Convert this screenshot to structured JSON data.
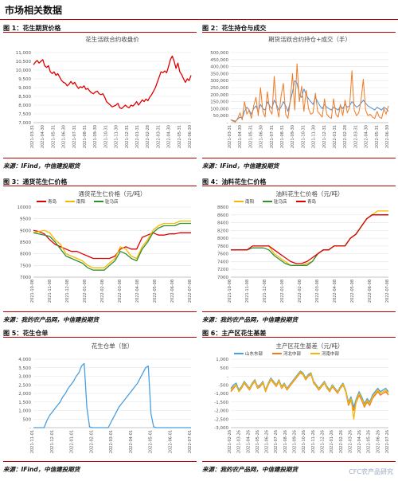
{
  "page": {
    "title": "市场相关数据"
  },
  "panels": [
    {
      "label": "图 1：花生期货价格",
      "source": "来源：IFind，中信建投期货"
    },
    {
      "label": "图 2：花生持仓与成交",
      "source": "来源：IFind，中信建投期货"
    },
    {
      "label": "图 3：通货花生仁价格",
      "source": "来源：我的农产品网，中信建投期货"
    },
    {
      "label": "图 4：油料花生仁价格",
      "source": "来源：我的农产品网，中信建投期货"
    },
    {
      "label": "图 5：花生仓单",
      "source": "来源：IFind，中信建投期货"
    },
    {
      "label": "图 6：主产区花生基差",
      "source": "来源：我的农产品网，中信建投期货"
    }
  ],
  "watermark": "CFC农产品研究",
  "colors": {
    "accent_rule": "#c00000",
    "red": "#e00000",
    "orange": "#f07a22",
    "blue": "#4f8fd6",
    "gold": "#f5b800",
    "green": "#2f8f2f",
    "lightblue": "#4a9fe0"
  },
  "chart_data": [
    {
      "type": "line",
      "title": "花生活跃合约收盘价",
      "ylim": [
        7000,
        11000
      ],
      "yticks": [
        7000,
        7500,
        8000,
        8500,
        9000,
        9500,
        10000,
        10500,
        11000
      ],
      "ytick_labels": [
        "7,000",
        "7,500",
        "8,000",
        "8,500",
        "9,000",
        "9,500",
        "10,000",
        "10,500",
        "11,000"
      ],
      "x_labels": [
        "2021-03-31",
        "2021-04-30",
        "2021-05-31",
        "2021-06-30",
        "2021-07-31",
        "2021-08-31",
        "2021-09-30",
        "2021-10-31",
        "2021-11-30",
        "2021-12-31",
        "2022-01-31",
        "2022-02-28",
        "2022-03-31",
        "2022-04-30",
        "2022-05-31",
        "2022-06-30"
      ],
      "series": [
        {
          "values": [
            10300,
            10450,
            10550,
            10400,
            10500,
            10600,
            10250,
            10150,
            10250,
            9900,
            9800,
            9900,
            9700,
            9800,
            9600,
            9400,
            9300,
            9250,
            9100,
            9200,
            9350,
            9200,
            9300,
            9100,
            8950,
            9050,
            9000,
            9100,
            8900,
            8950,
            8800,
            8700,
            8650,
            8750,
            8800,
            8650,
            8600,
            8650,
            8450,
            8200,
            8100,
            8000,
            7900,
            7950,
            8000,
            8100,
            7850,
            7800,
            7900,
            8000,
            7900,
            7850,
            8000,
            7950,
            8050,
            8200,
            8000,
            8150,
            8300,
            8200,
            8350,
            8250,
            8450,
            8600,
            8800,
            9000,
            9300,
            9600,
            9900,
            9850,
            9950,
            9850,
            10200,
            10600,
            10800,
            10500,
            10100,
            10400,
            9900,
            9750,
            9500,
            9300,
            9500,
            9400,
            9700
          ]
        }
      ]
    },
    {
      "type": "line",
      "title": "期货活跃合约持仓+成交（手）",
      "ylim": [
        0,
        500000
      ],
      "yticks": [
        0,
        50000,
        100000,
        150000,
        200000,
        250000,
        300000,
        350000,
        400000,
        450000,
        500000
      ],
      "ytick_labels": [
        "-",
        "50,000",
        "100,000",
        "150,000",
        "200,000",
        "250,000",
        "300,000",
        "350,000",
        "400,000",
        "450,000",
        "500,000"
      ],
      "x_labels": [
        "2021-03-31",
        "2021-04-30",
        "2021-05-31",
        "2021-06-30",
        "2021-07-31",
        "2021-08-31",
        "2021-09-30",
        "2021-10-31",
        "2021-11-30",
        "2021-12-31",
        "2022-01-31",
        "2022-02-28",
        "2022-03-31",
        "2022-04-30",
        "2022-05-31",
        "2022-06-30"
      ],
      "series": [
        {
          "values": [
            20000,
            15000,
            10000,
            25000,
            40000,
            30000,
            80000,
            110000,
            90000,
            60000,
            100000,
            120000,
            80000,
            130000,
            100000,
            90000,
            150000,
            120000,
            100000,
            160000,
            130000,
            90000,
            110000,
            150000,
            120000,
            80000,
            150000,
            220000,
            300000,
            280000,
            200000,
            180000,
            240000,
            200000,
            170000,
            150000,
            130000,
            180000,
            150000,
            120000,
            100000,
            130000,
            110000,
            100000,
            90000,
            110000,
            100000,
            90000,
            120000,
            100000,
            130000,
            110000,
            120000,
            150000,
            130000,
            110000,
            120000,
            140000,
            160000,
            140000,
            120000,
            110000,
            100000,
            90000,
            110000,
            100000,
            90000,
            110000,
            100000,
            80000
          ]
        },
        {
          "values": [
            20000,
            10000,
            5000,
            30000,
            70000,
            20000,
            150000,
            60000,
            90000,
            30000,
            120000,
            180000,
            50000,
            250000,
            80000,
            40000,
            220000,
            90000,
            60000,
            330000,
            120000,
            40000,
            190000,
            280000,
            60000,
            30000,
            150000,
            350000,
            90000,
            420000,
            150000,
            260000,
            80000,
            230000,
            100000,
            60000,
            70000,
            210000,
            80000,
            60000,
            40000,
            170000,
            60000,
            40000,
            30000,
            170000,
            60000,
            40000,
            130000,
            50000,
            160000,
            70000,
            110000,
            370000,
            90000,
            50000,
            70000,
            160000,
            310000,
            90000,
            50000,
            60000,
            40000,
            30000,
            80000,
            40000,
            30000,
            100000,
            60000,
            120000
          ]
        }
      ]
    },
    {
      "type": "line",
      "title": "通货花生仁价格（元/吨）",
      "ylim": [
        7000,
        10000
      ],
      "yticks": [
        7000,
        7500,
        8000,
        8500,
        9000,
        9500,
        10000
      ],
      "ytick_labels": [
        "7000",
        "7500",
        "8000",
        "8500",
        "9000",
        "9500",
        "10000"
      ],
      "x_labels": [
        "2021-10-08",
        "2021-11-08",
        "2021-12-08",
        "2022-01-08",
        "2022-02-08",
        "2022-03-08",
        "2022-04-08",
        "2022-05-08",
        "2022-06-08",
        "2022-07-08"
      ],
      "series": [
        {
          "name": "青岛",
          "values": [
            9000,
            8950,
            8850,
            8600,
            8400,
            8300,
            8200,
            8100,
            8100,
            8000,
            7900,
            7800,
            7800,
            7800,
            7800,
            7900,
            8200,
            8300,
            8200,
            8200,
            8700,
            8800,
            8900,
            8800,
            8800,
            8850,
            8850,
            8900,
            8900,
            8900
          ]
        },
        {
          "name": "南阳",
          "values": [
            8900,
            8950,
            9000,
            8900,
            8600,
            8400,
            8000,
            7900,
            7800,
            7700,
            7500,
            7400,
            7400,
            7400,
            7600,
            7800,
            8300,
            8200,
            7900,
            7800,
            8300,
            8600,
            9000,
            9200,
            9300,
            9300,
            9300,
            9400,
            9400,
            9400
          ]
        },
        {
          "name": "驻马店",
          "values": [
            8900,
            8850,
            8800,
            8750,
            8500,
            8200,
            7900,
            7800,
            7700,
            7600,
            7400,
            7300,
            7300,
            7300,
            7500,
            7700,
            8100,
            8000,
            7800,
            7700,
            8200,
            8500,
            8900,
            9100,
            9200,
            9200,
            9200,
            9300,
            9300,
            9300
          ]
        }
      ]
    },
    {
      "type": "line",
      "title": "油料花生仁价格（元/吨）",
      "ylim": [
        7000,
        8800
      ],
      "yticks": [
        7000,
        7200,
        7400,
        7600,
        7800,
        8000,
        8200,
        8400,
        8600,
        8800
      ],
      "ytick_labels": [
        "7000",
        "7200",
        "7400",
        "7600",
        "7800",
        "8000",
        "8200",
        "8400",
        "8600",
        "8800"
      ],
      "x_labels": [
        "2021-10-08",
        "2021-11-08",
        "2021-12-08",
        "2022-01-08",
        "2022-02-08",
        "2022-03-08",
        "2022-04-08",
        "2022-05-08",
        "2022-06-08",
        "2022-07-08"
      ],
      "series": [
        {
          "name": "南阳",
          "values": [
            7700,
            7700,
            7700,
            7700,
            7800,
            7800,
            7800,
            7800,
            7600,
            7500,
            7400,
            7300,
            7300,
            7300,
            7350,
            7400,
            7600,
            7700,
            7700,
            7800,
            7800,
            7800,
            8000,
            8100,
            8300,
            8500,
            8600,
            8700,
            8700,
            8700
          ]
        },
        {
          "name": "驻马店",
          "values": [
            7700,
            7700,
            7700,
            7700,
            7750,
            7750,
            7750,
            7700,
            7550,
            7450,
            7350,
            7300,
            7300,
            7300,
            7300,
            7400,
            7600,
            7700,
            7700,
            7800,
            7800,
            7800,
            8000,
            8100,
            8300,
            8500,
            8600,
            8600,
            8600,
            8600
          ]
        },
        {
          "name": "青岛",
          "values": [
            7700,
            7700,
            7700,
            7700,
            7800,
            7800,
            7800,
            7800,
            7700,
            7600,
            7500,
            7400,
            7350,
            7350,
            7400,
            7500,
            7600,
            7700,
            7700,
            7800,
            7800,
            7800,
            8000,
            8100,
            8300,
            8500,
            8600,
            8600,
            8600,
            8600
          ]
        }
      ]
    },
    {
      "type": "line",
      "title": "花生仓单（张）",
      "ylim": [
        0,
        4000
      ],
      "yticks": [
        0,
        500,
        1000,
        1500,
        2000,
        2500,
        3000,
        3500,
        4000
      ],
      "ytick_labels": [
        "-",
        "500",
        "1,000",
        "1,500",
        "2,000",
        "2,500",
        "3,000",
        "3,500",
        "4,000"
      ],
      "x_labels": [
        "2021-11-01",
        "2021-12-01",
        "2022-01-01",
        "2022-02-01",
        "2022-03-01",
        "2022-04-01",
        "2022-05-01",
        "2022-06-01",
        "2022-07-01"
      ],
      "series": [
        {
          "values": [
            0,
            0,
            0,
            0,
            0,
            400,
            700,
            900,
            1100,
            1300,
            1500,
            1800,
            2000,
            2300,
            2500,
            2700,
            3000,
            3200,
            3600,
            3750,
            1200,
            50,
            0,
            0,
            0,
            0,
            0,
            0,
            0,
            300,
            600,
            900,
            1200,
            1400,
            1600,
            1800,
            2000,
            2200,
            2400,
            2600,
            2900,
            3200,
            3500,
            3600,
            800,
            50,
            0,
            0,
            0,
            0,
            0,
            0,
            0,
            0,
            0,
            0,
            0,
            0,
            0,
            0
          ]
        }
      ]
    },
    {
      "type": "line",
      "title": "主产区花生基差（元/吨）",
      "ylim": [
        -3000,
        1000
      ],
      "yticks": [
        -3000,
        -2500,
        -2000,
        -1500,
        -1000,
        -500,
        0,
        500,
        1000
      ],
      "ytick_labels": [
        "-3,000",
        "-2,500",
        "-2,000",
        "-1,500",
        "-1,000",
        "-500",
        "-",
        "500",
        "1,000"
      ],
      "x_labels": [
        "2021-02-26",
        "2021-03-26",
        "2021-04-26",
        "2021-05-26",
        "2021-06-26",
        "2021-07-26",
        "2021-08-26",
        "2021-09-26",
        "2021-10-26",
        "2021-11-26",
        "2021-12-26",
        "2022-01-26",
        "2022-02-26",
        "2022-03-26",
        "2022-04-26",
        "2022-05-26",
        "2022-06-26",
        "2022-07-26"
      ],
      "series": [
        {
          "name": "山东东部",
          "values": [
            -700,
            -500,
            -400,
            -800,
            -600,
            -300,
            -500,
            -700,
            -400,
            -200,
            -600,
            -500,
            -300,
            -800,
            -400,
            -100,
            -300,
            -500,
            -200,
            -600,
            -400,
            -700,
            -500,
            -300,
            -100,
            100,
            300,
            200,
            -100,
            100,
            200,
            -300,
            -500,
            -700,
            -500,
            -300,
            -600,
            -800,
            -500,
            -700,
            -900,
            -600,
            -400,
            -800,
            -1500,
            -1200,
            -1800,
            -1300,
            -900,
            -1200,
            -1600,
            -1300,
            -1500,
            -1100,
            -900,
            -700,
            -900,
            -800,
            -700,
            -900
          ]
        },
        {
          "name": "河北中部",
          "values": [
            -900,
            -700,
            -500,
            -900,
            -700,
            -400,
            -600,
            -800,
            -500,
            -300,
            -700,
            -600,
            -400,
            -900,
            -500,
            -200,
            -400,
            -600,
            -300,
            -700,
            -500,
            -800,
            -600,
            -400,
            -200,
            0,
            200,
            100,
            -200,
            0,
            100,
            -400,
            -600,
            -800,
            -600,
            -400,
            -700,
            -900,
            -600,
            -800,
            -1000,
            -700,
            -500,
            -900,
            -1700,
            -1400,
            -2000,
            -1500,
            -1100,
            -1400,
            -1800,
            -1500,
            -1700,
            -1300,
            -1100,
            -900,
            -1100,
            -1000,
            -900,
            -1100
          ]
        },
        {
          "name": "河南中部",
          "values": [
            -800,
            -600,
            -500,
            -900,
            -650,
            -350,
            -550,
            -750,
            -450,
            -250,
            -650,
            -550,
            -350,
            -850,
            -450,
            -150,
            -350,
            -550,
            -250,
            -650,
            -450,
            -750,
            -550,
            -350,
            -150,
            50,
            250,
            150,
            -150,
            50,
            150,
            -350,
            -550,
            -750,
            -550,
            -350,
            -650,
            -850,
            -550,
            -750,
            -950,
            -650,
            -450,
            -850,
            -1600,
            -1300,
            -2500,
            -1400,
            -1000,
            -1300,
            -1700,
            -1400,
            -1600,
            -1200,
            -1000,
            -800,
            -1000,
            -900,
            -800,
            -1000
          ]
        }
      ]
    }
  ]
}
